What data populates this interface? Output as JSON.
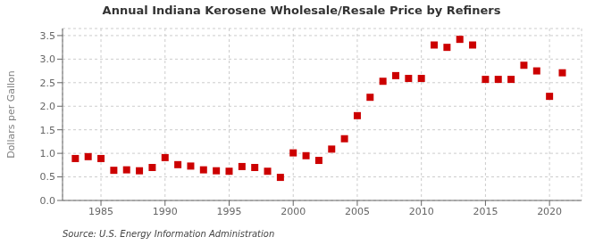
{
  "chart_data": {
    "type": "scatter",
    "title": "Annual Indiana Kerosene Wholesale/Resale Price by Refiners",
    "y_label": "Dollars per Gallon",
    "annotations": [
      "Source: U.S. Energy Information Administration"
    ],
    "x": [
      1983,
      1984,
      1985,
      1986,
      1987,
      1988,
      1989,
      1990,
      1991,
      1992,
      1993,
      1994,
      1995,
      1996,
      1997,
      1998,
      1999,
      2000,
      2001,
      2002,
      2003,
      2004,
      2005,
      2006,
      2007,
      2008,
      2009,
      2010,
      2011,
      2012,
      2013,
      2014,
      2015,
      2016,
      2017,
      2018,
      2019,
      2020,
      2021
    ],
    "values": [
      0.89,
      0.93,
      0.89,
      0.64,
      0.65,
      0.63,
      0.7,
      0.91,
      0.76,
      0.73,
      0.65,
      0.63,
      0.62,
      0.72,
      0.7,
      0.62,
      0.49,
      1.01,
      0.95,
      0.85,
      1.09,
      1.31,
      1.8,
      2.19,
      2.53,
      2.65,
      2.59,
      2.59,
      3.3,
      3.25,
      3.42,
      3.3,
      2.57,
      2.57,
      2.57,
      2.87,
      2.75,
      2.21,
      2.71
    ],
    "color": "#cc0000",
    "marker": "square",
    "xlim": [
      1982,
      2022.5
    ],
    "ylim": [
      0.0,
      3.65
    ],
    "xticks": [
      1985,
      1990,
      1995,
      2000,
      2005,
      2010,
      2015,
      2020
    ],
    "yticks": [
      {
        "value": 0.0,
        "label": "0.0"
      },
      0.5,
      {
        "value": 1.0,
        "label": "1.0"
      },
      1.5,
      {
        "value": 2.0,
        "label": "2.0"
      },
      2.5,
      {
        "value": 3.0,
        "label": "3.0"
      },
      3.5
    ],
    "grid": true
  }
}
